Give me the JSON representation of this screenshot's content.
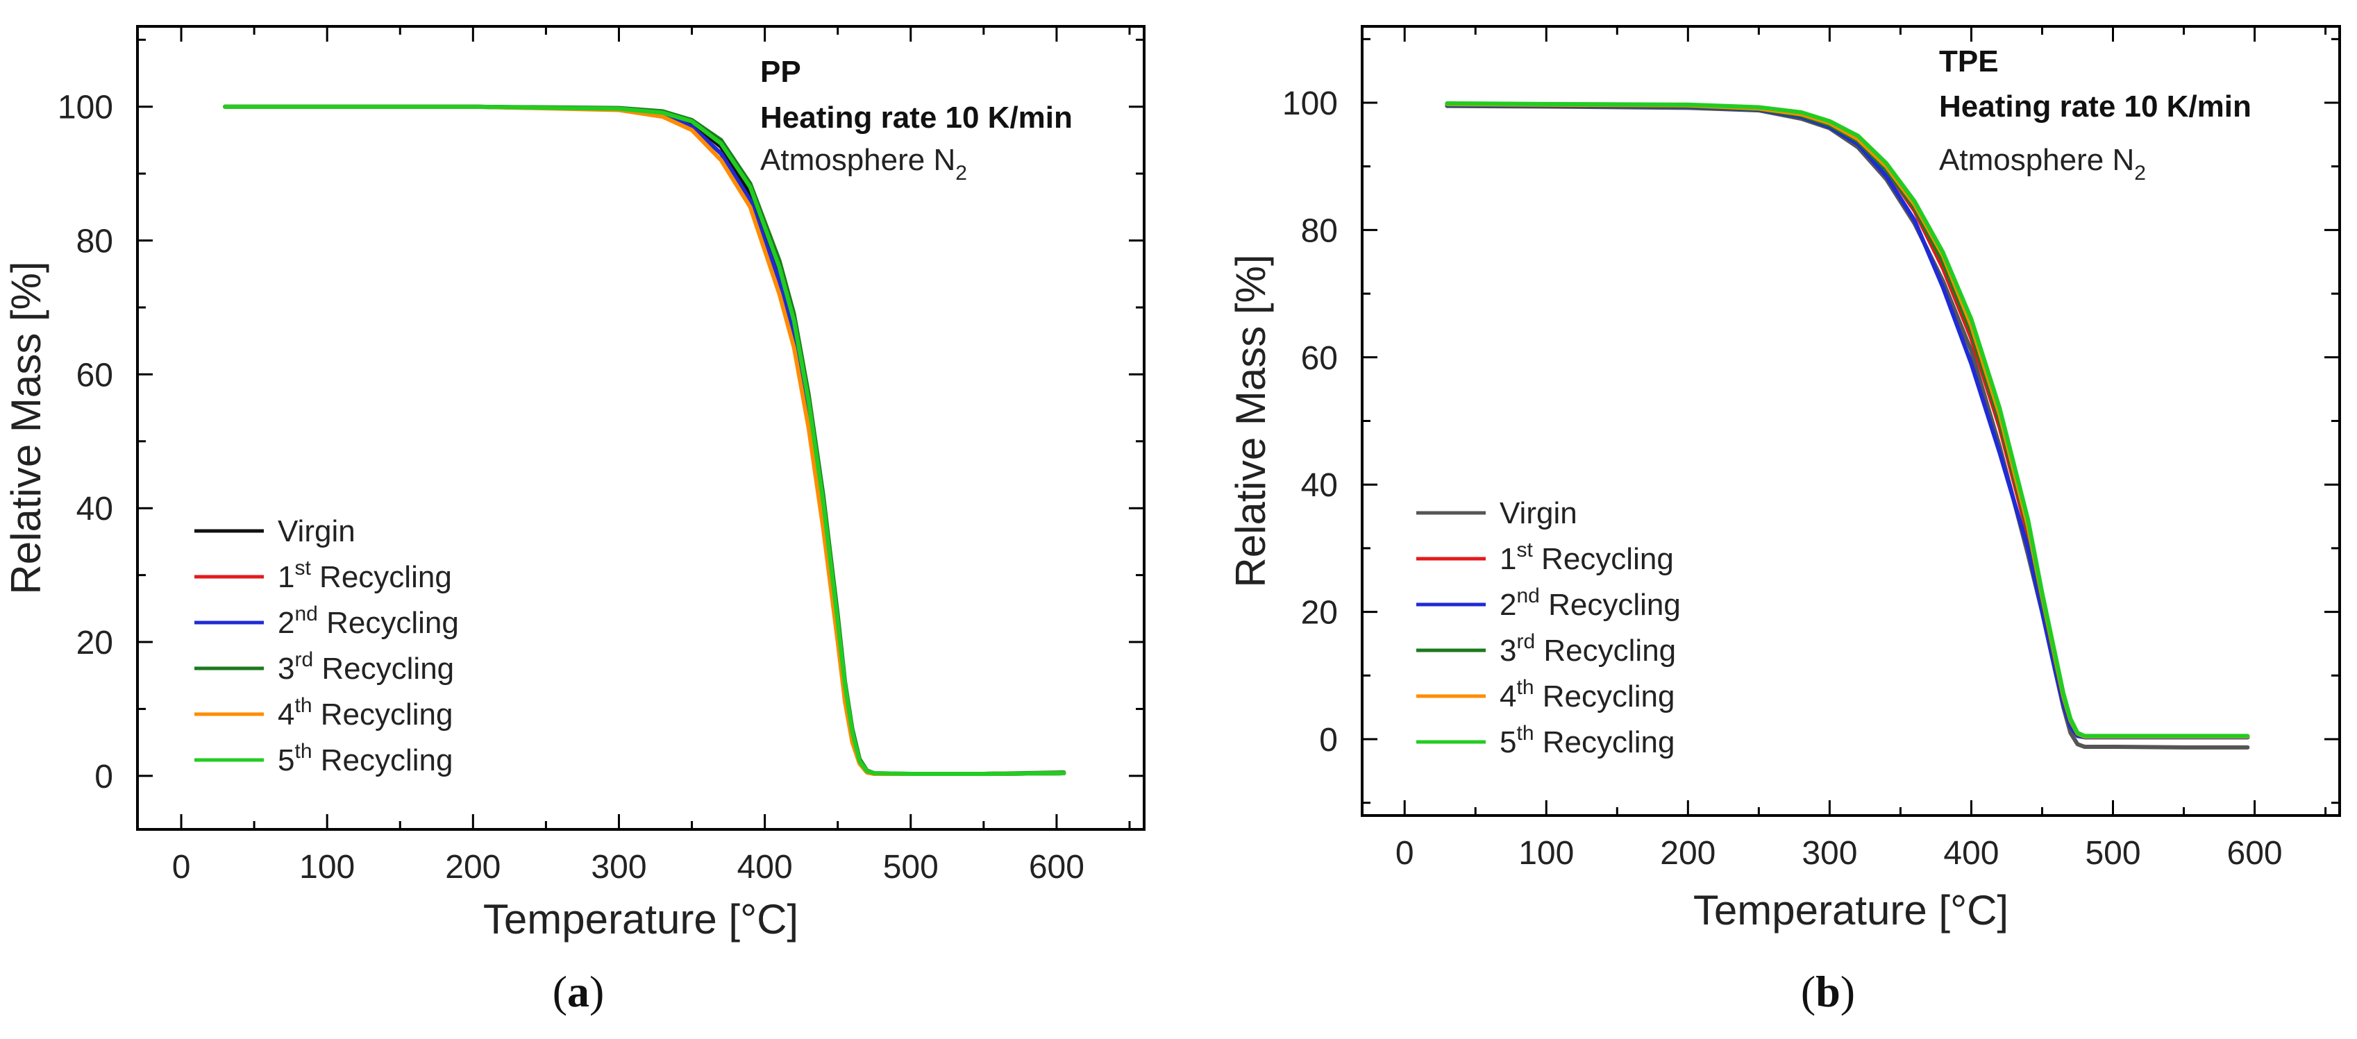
{
  "figure": {
    "panels": [
      {
        "panel_label": "(a)",
        "annotation": {
          "line1": "PP",
          "line2": "Heating rate 10 K/min",
          "line3_prefix": "Atmosphere N",
          "line3_sub": "2"
        },
        "xlabel": "Temperature [°C]",
        "ylabel": "Relative Mass [%]",
        "legend": [
          {
            "name": "Virgin",
            "sup": "",
            "suffix": ""
          },
          {
            "name": "1",
            "sup": "st",
            "suffix": " Recycling"
          },
          {
            "name": "2",
            "sup": "nd",
            "suffix": " Recycling"
          },
          {
            "name": "3",
            "sup": "rd",
            "suffix": " Recycling"
          },
          {
            "name": "4",
            "sup": "th",
            "suffix": " Recycling"
          },
          {
            "name": "5",
            "sup": "th",
            "suffix": " Recycling"
          }
        ]
      },
      {
        "panel_label": "(b)",
        "annotation": {
          "line1": "TPE",
          "line2": "Heating rate 10 K/min",
          "line3_prefix": "Atmosphere N",
          "line3_sub": "2"
        },
        "xlabel": "Temperature [°C]",
        "ylabel": "Relative Mass [%]",
        "legend": [
          {
            "name": "Virgin",
            "sup": "",
            "suffix": ""
          },
          {
            "name": "1",
            "sup": "st",
            "suffix": " Recycling"
          },
          {
            "name": "2",
            "sup": "nd",
            "suffix": " Recycling"
          },
          {
            "name": "3",
            "sup": "rd",
            "suffix": " Recycling"
          },
          {
            "name": "4",
            "sup": "th",
            "suffix": " Recycling"
          },
          {
            "name": "5",
            "sup": "th",
            "suffix": " Recycling"
          }
        ]
      }
    ]
  },
  "chart_data": [
    {
      "type": "line",
      "xlabel": "Temperature [°C]",
      "ylabel": "Relative Mass [%]",
      "xlim": [
        -30,
        660
      ],
      "ylim": [
        -8,
        112
      ],
      "xticks": [
        0,
        100,
        200,
        300,
        400,
        500,
        600
      ],
      "yticks": [
        0,
        20,
        40,
        60,
        80,
        100
      ],
      "grid": false,
      "legend_position": "bottom-left",
      "series": [
        {
          "name": "Virgin",
          "color": "#111111",
          "x": [
            30,
            100,
            200,
            300,
            330,
            350,
            370,
            390,
            410,
            420,
            430,
            440,
            450,
            455,
            460,
            465,
            470,
            475,
            500,
            550,
            605
          ],
          "y": [
            100,
            100,
            100,
            99.7,
            99,
            97.5,
            94,
            87,
            75,
            67,
            55,
            40,
            22,
            13,
            6,
            2,
            0.6,
            0.3,
            0.3,
            0.3,
            0.4
          ]
        },
        {
          "name": "1st Recycling",
          "color": "#e31a1c",
          "x": [
            30,
            100,
            200,
            300,
            330,
            350,
            370,
            390,
            410,
            420,
            430,
            440,
            450,
            455,
            460,
            465,
            470,
            475,
            500,
            550,
            605
          ],
          "y": [
            100,
            100,
            100,
            99.6,
            98.8,
            97,
            93,
            86,
            74,
            66,
            54,
            39,
            21,
            12,
            5.5,
            2,
            0.6,
            0.3,
            0.3,
            0.3,
            0.4
          ]
        },
        {
          "name": "2nd Recycling",
          "color": "#1f2bd6",
          "x": [
            30,
            100,
            200,
            300,
            330,
            350,
            370,
            390,
            410,
            420,
            430,
            440,
            450,
            455,
            460,
            465,
            470,
            475,
            500,
            550,
            605
          ],
          "y": [
            100,
            100,
            100,
            99.6,
            98.8,
            97,
            93,
            86,
            74,
            66,
            54,
            39,
            21,
            12,
            5.5,
            2,
            0.6,
            0.3,
            0.3,
            0.3,
            0.4
          ]
        },
        {
          "name": "3rd Recycling",
          "color": "#1b7a1b",
          "x": [
            30,
            100,
            200,
            300,
            330,
            350,
            370,
            390,
            410,
            420,
            430,
            440,
            450,
            455,
            460,
            465,
            470,
            475,
            500,
            550,
            605
          ],
          "y": [
            100,
            100,
            100,
            99.8,
            99.3,
            98,
            95,
            88.5,
            77,
            69,
            57,
            42,
            24,
            14,
            7,
            2.5,
            0.8,
            0.4,
            0.3,
            0.3,
            0.5
          ]
        },
        {
          "name": "4th Recycling",
          "color": "#ff8c00",
          "x": [
            30,
            100,
            200,
            300,
            330,
            350,
            370,
            390,
            410,
            420,
            430,
            440,
            450,
            455,
            460,
            465,
            470,
            475,
            500,
            550,
            605
          ],
          "y": [
            100,
            100,
            100,
            99.5,
            98.5,
            96.5,
            92,
            85,
            72,
            64,
            52,
            37,
            20,
            11,
            5,
            1.8,
            0.5,
            0.3,
            0.3,
            0.3,
            0.4
          ]
        },
        {
          "name": "5th Recycling",
          "color": "#22cc22",
          "x": [
            30,
            100,
            200,
            300,
            330,
            350,
            370,
            390,
            410,
            420,
            430,
            440,
            450,
            455,
            460,
            465,
            470,
            475,
            500,
            550,
            605
          ],
          "y": [
            100,
            100,
            100,
            99.7,
            99.1,
            97.8,
            94.5,
            88,
            76,
            68,
            56,
            41,
            23,
            13.5,
            6.5,
            2.2,
            0.7,
            0.4,
            0.3,
            0.3,
            0.4
          ]
        }
      ]
    },
    {
      "type": "line",
      "xlabel": "Temperature [°C]",
      "ylabel": "Relative Mass [%]",
      "xlim": [
        -30,
        660
      ],
      "ylim": [
        -12,
        112
      ],
      "xticks": [
        0,
        100,
        200,
        300,
        400,
        500,
        600
      ],
      "yticks": [
        0,
        20,
        40,
        60,
        80,
        100
      ],
      "grid": false,
      "legend_position": "bottom-left",
      "series": [
        {
          "name": "Virgin",
          "color": "#555555",
          "x": [
            30,
            100,
            200,
            250,
            280,
            300,
            320,
            340,
            360,
            380,
            400,
            420,
            440,
            450,
            460,
            465,
            470,
            475,
            480,
            500,
            550,
            595
          ],
          "y": [
            99.5,
            99.4,
            99.2,
            98.8,
            97.5,
            96,
            93,
            88,
            81,
            72,
            61,
            46,
            29,
            20,
            10,
            5,
            1,
            -0.8,
            -1.2,
            -1.2,
            -1.3,
            -1.3
          ]
        },
        {
          "name": "1st Recycling",
          "color": "#e31a1c",
          "x": [
            30,
            100,
            200,
            250,
            280,
            300,
            320,
            340,
            360,
            380,
            400,
            420,
            440,
            450,
            460,
            465,
            470,
            475,
            480,
            500,
            550,
            595
          ],
          "y": [
            99.7,
            99.6,
            99.5,
            99,
            98,
            96.5,
            94,
            89.5,
            83,
            74,
            63,
            49,
            32,
            21,
            11,
            6,
            2.5,
            0.7,
            0.3,
            0.3,
            0.3,
            0.3
          ]
        },
        {
          "name": "2nd Recycling",
          "color": "#1f2bd6",
          "x": [
            30,
            100,
            200,
            250,
            280,
            300,
            320,
            340,
            360,
            380,
            400,
            420,
            440,
            450,
            460,
            465,
            470,
            475,
            480,
            500,
            550,
            595
          ],
          "y": [
            99.6,
            99.5,
            99.4,
            98.9,
            97.8,
            96.2,
            93.5,
            88.5,
            81.5,
            71,
            59,
            45,
            30,
            20,
            10,
            5.5,
            2,
            0.5,
            0.3,
            0.3,
            0.3,
            0.3
          ]
        },
        {
          "name": "3rd Recycling",
          "color": "#1b7a1b",
          "x": [
            30,
            100,
            200,
            250,
            280,
            300,
            320,
            340,
            360,
            380,
            400,
            420,
            440,
            450,
            460,
            465,
            470,
            475,
            480,
            500,
            550,
            595
          ],
          "y": [
            99.7,
            99.6,
            99.5,
            99,
            98,
            96.5,
            94,
            89.5,
            83.5,
            75,
            64,
            50,
            33,
            22,
            11.5,
            6.5,
            2.8,
            0.8,
            0.4,
            0.4,
            0.4,
            0.4
          ]
        },
        {
          "name": "4th Recycling",
          "color": "#ff8c00",
          "x": [
            30,
            100,
            200,
            250,
            280,
            300,
            320,
            340,
            360,
            380,
            400,
            420,
            440,
            450,
            460,
            465,
            470,
            475,
            480,
            500,
            550,
            595
          ],
          "y": [
            99.8,
            99.7,
            99.6,
            99.1,
            98.2,
            96.8,
            94.3,
            90,
            84,
            76,
            65,
            51,
            33.5,
            22.5,
            12,
            6.8,
            3,
            0.9,
            0.4,
            0.4,
            0.4,
            0.4
          ]
        },
        {
          "name": "5th Recycling",
          "color": "#22cc22",
          "x": [
            30,
            100,
            200,
            250,
            280,
            300,
            320,
            340,
            360,
            380,
            400,
            420,
            440,
            450,
            460,
            465,
            470,
            475,
            480,
            500,
            550,
            595
          ],
          "y": [
            99.9,
            99.8,
            99.7,
            99.3,
            98.5,
            97.1,
            94.8,
            90.5,
            84.5,
            76.5,
            66,
            52,
            34.5,
            23,
            12.5,
            7.2,
            3.2,
            1,
            0.5,
            0.5,
            0.5,
            0.5
          ]
        }
      ]
    }
  ]
}
